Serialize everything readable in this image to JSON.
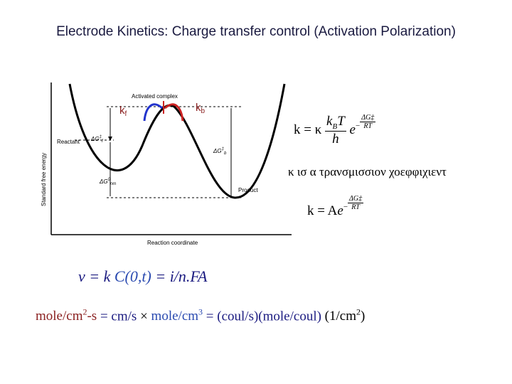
{
  "header": {
    "title": "Electrode Kinetics: Charge transfer control (Activation Polarization)"
  },
  "diagram": {
    "kf": {
      "main": "k",
      "sub": "f"
    },
    "kb": {
      "main": "k",
      "sub": "b"
    },
    "activated_complex": "Activated complex",
    "reactant": "Reactant",
    "product": "Product",
    "y_axis": "Standard free energy",
    "x_axis": "Reaction coordinate",
    "dg_f": {
      "main": "ΔG",
      "sup": "‡",
      "sub": "f"
    },
    "dg_b": {
      "main": "ΔG",
      "sup": "‡",
      "sub": "b"
    },
    "dg_rxn": {
      "main": "ΔG",
      "sup": "0",
      "sub": "rxn"
    }
  },
  "equations": {
    "eq1": {
      "lhs": "k = κ",
      "numerator": "k",
      "numerator_sub": "B",
      "numerator_rest": "T",
      "denominator": "h",
      "base": "e",
      "exp_sign": "−",
      "exp_numerator": "ΔG‡",
      "exp_denominator": "RT"
    },
    "note": "κ ισ α τρανσμισσιον χοεφφιχιεντ",
    "eq2": {
      "lhs": "k = A",
      "base": "e",
      "exp_sign": "−",
      "exp_numerator": "ΔG‡",
      "exp_denominator": "RT"
    },
    "rate": {
      "parts": [
        "v = k ",
        "C(0,t)",
        " = ",
        "i/n.FA"
      ]
    },
    "units": {
      "parts": [
        {
          "text": "mole/cm",
          "sup": "2",
          "rest": "-s"
        },
        {
          "text": " = cm/s"
        },
        {
          "text": " × "
        },
        {
          "text": "mole/cm",
          "sup": "3"
        },
        {
          "text": " = (coul/s)(mole/coul)"
        },
        {
          "text": " (1/cm",
          "sup": "2",
          "rest": ")"
        }
      ]
    }
  }
}
